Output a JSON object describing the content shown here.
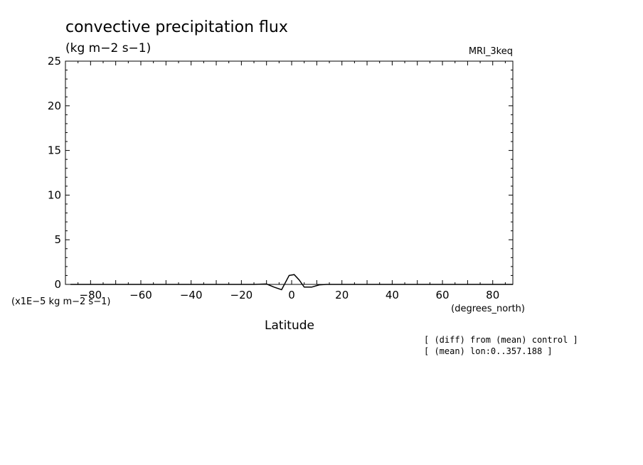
{
  "chart_data": {
    "type": "line",
    "title": "convective precipitation flux",
    "subtitle": "(kg m−2 s−1)",
    "model": "MRI_3keq",
    "xlabel": "Latitude",
    "xunits": "(degrees_north)",
    "yunits": "(x1E−5 kg m−2 s−1)",
    "xlim": [
      -90,
      88
    ],
    "ylim": [
      0,
      25
    ],
    "xticks": [
      -80,
      -60,
      -40,
      -20,
      0,
      20,
      40,
      60,
      80
    ],
    "yticks": [
      0,
      5,
      10,
      15,
      20,
      25
    ],
    "xtick_labels": [
      "−80",
      "−60",
      "−40",
      "−20",
      "0",
      "20",
      "40",
      "60",
      "80"
    ],
    "ytick_labels": [
      "0",
      "5",
      "10",
      "15",
      "20",
      "25"
    ],
    "grid": false,
    "series": [
      {
        "x": [
          -88,
          -80,
          -70,
          -60,
          -50,
          -40,
          -30,
          -20,
          -15,
          -10,
          -7,
          -4,
          -1,
          1,
          3,
          5,
          8,
          11,
          14,
          20,
          30,
          40,
          50,
          60,
          70,
          80,
          88
        ],
        "y": [
          0,
          0,
          0,
          0,
          0,
          0,
          0,
          0,
          0,
          0.05,
          -0.3,
          -0.6,
          1.0,
          1.1,
          0.5,
          -0.3,
          -0.3,
          -0.05,
          0,
          0,
          0,
          0,
          0,
          0,
          0,
          0,
          0
        ]
      }
    ],
    "notes": [
      "[ (diff) from (mean) control ]",
      "[ (mean) lon:0..357.188 ]"
    ]
  }
}
